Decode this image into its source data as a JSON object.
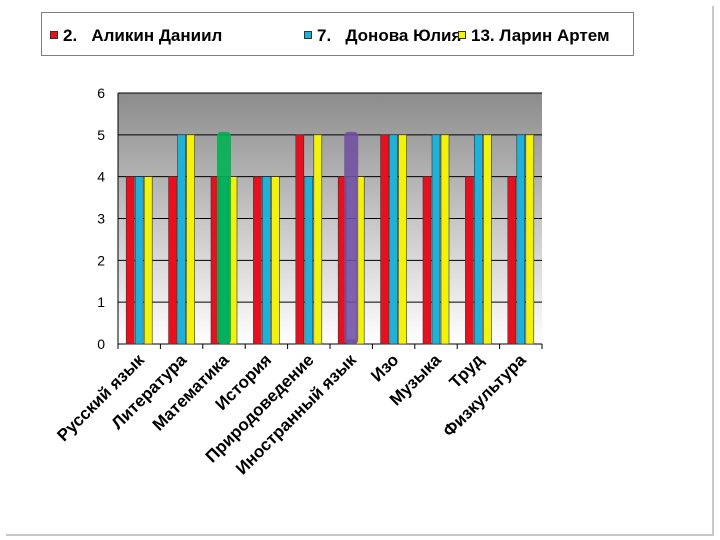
{
  "chart_data": {
    "type": "bar",
    "title": "",
    "xlabel": "",
    "ylabel": "",
    "ylim": [
      0,
      6
    ],
    "yticks": [
      "0",
      "1",
      "2",
      "3",
      "4",
      "5",
      "6"
    ],
    "grid": true,
    "legend_position": "top",
    "categories": [
      "Русский язык",
      "Литература",
      "Математика",
      "История",
      "Природоведение",
      "Иностранный язык",
      "Изо",
      "Музыка",
      "Труд",
      "Физкультура"
    ],
    "series": [
      {
        "name": "2.   Аликин Даниил",
        "color": "#e8101e",
        "values": [
          4,
          4,
          4,
          4,
          5,
          4,
          5,
          4,
          4,
          4
        ]
      },
      {
        "name": "7.   Донова Юлия",
        "color": "#1fb2d8",
        "values": [
          4,
          5,
          4,
          4,
          4,
          0.1,
          5,
          5,
          5,
          5
        ]
      },
      {
        "name": "13. Ларин Артем",
        "color": "#f2f20a",
        "values": [
          4,
          5,
          4,
          4,
          5,
          4,
          5,
          5,
          5,
          5
        ]
      }
    ],
    "highlights": [
      {
        "category": "Математика",
        "color": "#00b050",
        "value": 5
      },
      {
        "category": "Иностранный язык",
        "color": "#7050a0",
        "value": 5
      }
    ]
  }
}
